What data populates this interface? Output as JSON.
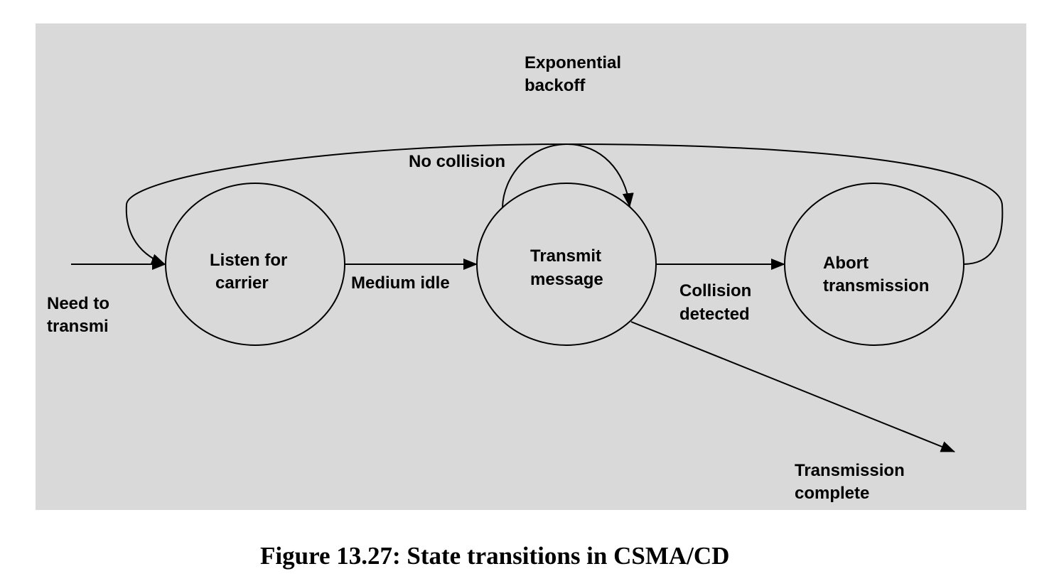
{
  "colors": {
    "panel": "#d9d9d9",
    "ink": "#000000",
    "page": "#ffffff"
  },
  "states": {
    "listen": {
      "line1": "Listen for",
      "line2": "carrier"
    },
    "transmit": {
      "line1": "Transmit",
      "line2": "message"
    },
    "abort": {
      "line1": "Abort",
      "line2": "transmission"
    }
  },
  "transitions": {
    "start": {
      "line1": "Need to",
      "line2": "transmi"
    },
    "medium_idle": "Medium idle",
    "no_collision": "No collision",
    "collision": {
      "line1": "Collision",
      "line2": "detected"
    },
    "backoff": {
      "line1": "Exponential",
      "line2": "backoff"
    },
    "complete": {
      "line1": "Transmission",
      "line2": "complete"
    }
  },
  "caption": "Figure 13.27: State transitions in CSMA/CD"
}
